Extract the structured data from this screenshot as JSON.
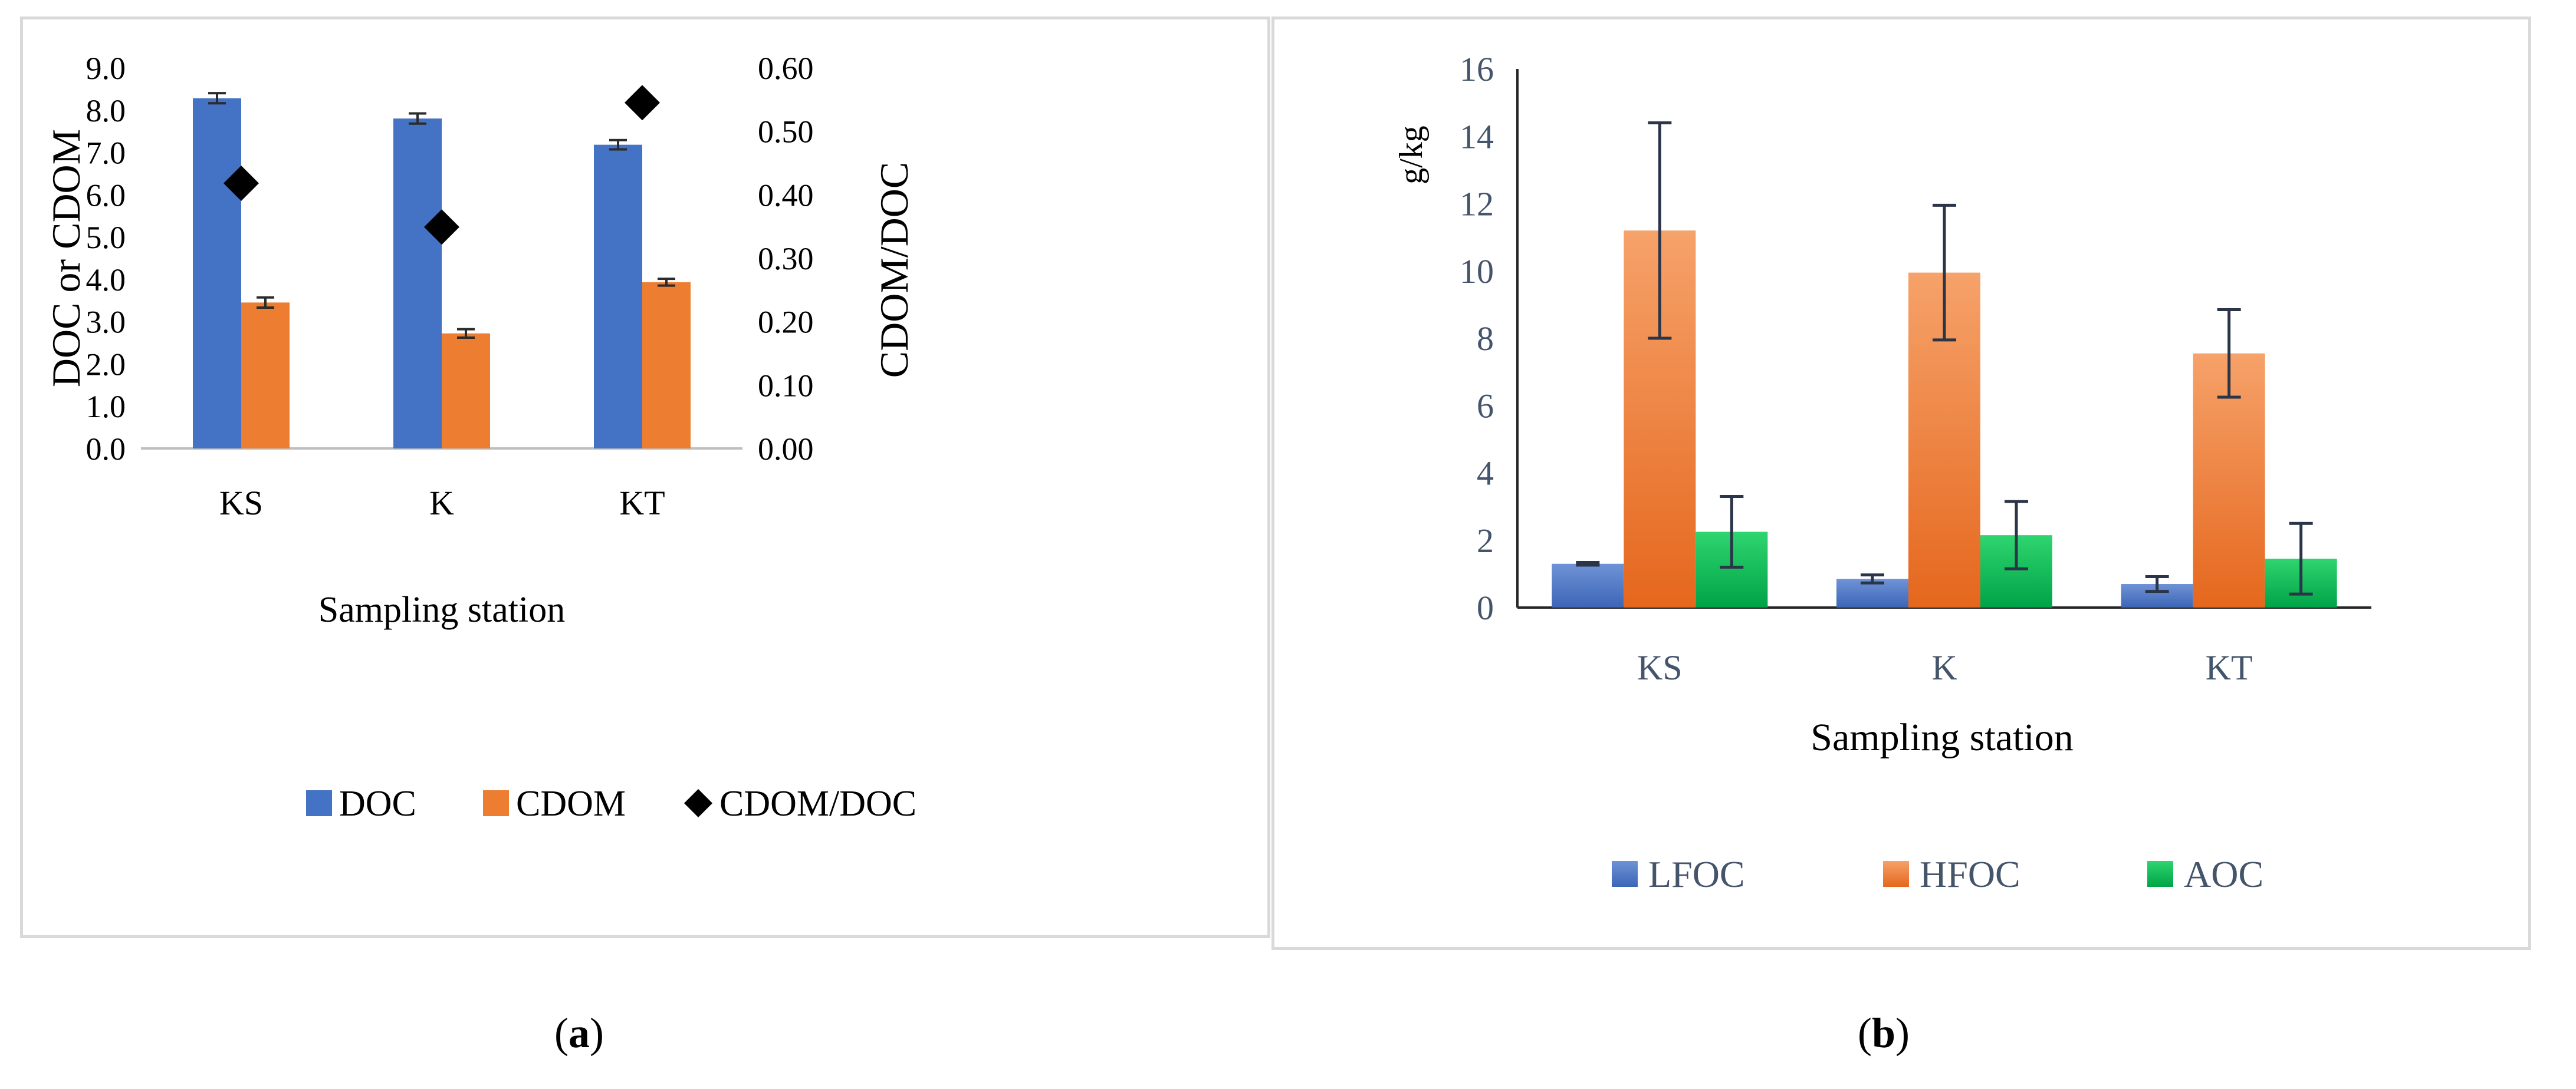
{
  "chart_data": [
    {
      "panel_label": "a",
      "type": "bar",
      "categories": [
        "KS",
        "K",
        "KT"
      ],
      "xlabel": "Sampling station",
      "ylabel": "DOC or CDOM",
      "y2label": "CDOM/DOC",
      "ylim": [
        0,
        9
      ],
      "y2lim": [
        0,
        0.6
      ],
      "yticks": [
        "0.0",
        "1.0",
        "2.0",
        "3.0",
        "4.0",
        "5.0",
        "6.0",
        "7.0",
        "8.0",
        "9.0"
      ],
      "y2ticks": [
        "0.00",
        "0.10",
        "0.20",
        "0.30",
        "0.40",
        "0.50",
        "0.60"
      ],
      "series": [
        {
          "name": "DOC",
          "type": "bar",
          "axis": "left",
          "color": "#4472c4",
          "values": [
            8.28,
            7.8,
            7.18
          ],
          "errors": [
            0.12,
            0.12,
            0.11
          ]
        },
        {
          "name": "CDOM",
          "type": "bar",
          "axis": "left",
          "color": "#ed7d31",
          "values": [
            3.45,
            2.72,
            3.93
          ],
          "errors": [
            0.12,
            0.1,
            0.08
          ]
        },
        {
          "name": "CDOM/DOC",
          "type": "scatter",
          "axis": "right",
          "color": "#000000",
          "marker": "diamond",
          "values": [
            0.418,
            0.349,
            0.545
          ]
        }
      ],
      "legend_position": "bottom"
    },
    {
      "panel_label": "b",
      "type": "bar",
      "categories": [
        "KS",
        "K",
        "KT"
      ],
      "xlabel": "Sampling station",
      "ylabel": "g/kg",
      "ylim": [
        0,
        16
      ],
      "yticks": [
        "0",
        "2",
        "4",
        "6",
        "8",
        "10",
        "12",
        "14",
        "16"
      ],
      "series": [
        {
          "name": "LFOC",
          "color": "#4472c4",
          "values": [
            1.3,
            0.85,
            0.7
          ],
          "errors": [
            0.04,
            0.12,
            0.22
          ]
        },
        {
          "name": "HFOC",
          "color": "#ed7d31",
          "values": [
            11.2,
            9.95,
            7.55
          ],
          "errors": [
            3.2,
            2.0,
            1.3
          ]
        },
        {
          "name": "AOC",
          "color": "#00b050",
          "values": [
            2.25,
            2.15,
            1.45
          ],
          "errors": [
            1.05,
            1.0,
            1.05
          ]
        }
      ],
      "legend_position": "bottom"
    }
  ],
  "captions": {
    "a_open": "(",
    "a_letter": "a",
    "a_close": ")",
    "b_open": "(",
    "b_letter": "b",
    "b_close": ")"
  }
}
